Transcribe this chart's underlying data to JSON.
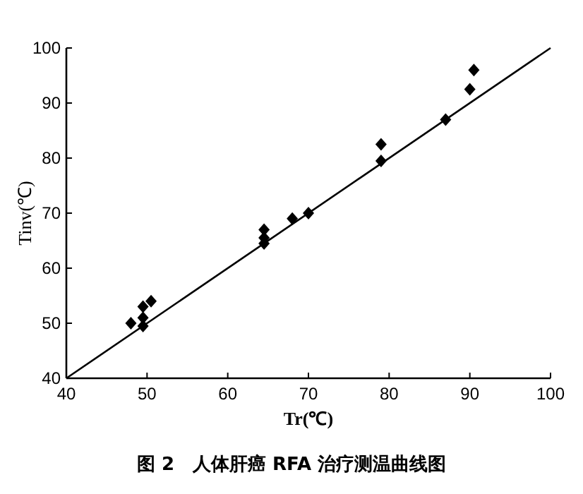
{
  "chart_data": {
    "type": "scatter",
    "xlabel": "Tr(℃)",
    "ylabel": "Tinv(℃)",
    "annotations": [
      "图 2　人体肝癌 RFA 治疗测温曲线图"
    ],
    "xlim": [
      40,
      100
    ],
    "ylim": [
      40,
      100
    ],
    "xticks": [
      40,
      50,
      60,
      70,
      80,
      90,
      100
    ],
    "yticks": [
      40,
      50,
      60,
      70,
      80,
      90,
      100
    ],
    "grid": false,
    "series": [
      {
        "marker": "diamond",
        "color": "#000000",
        "x": [
          48,
          49.5,
          49.5,
          49.5,
          50.5,
          64.5,
          64.5,
          64.5,
          68,
          70,
          79,
          79,
          87,
          90,
          90.5
        ],
        "values": [
          50,
          49.5,
          51,
          53,
          54,
          64.5,
          65.5,
          67,
          69,
          70,
          79.5,
          82.5,
          87,
          92.5,
          96
        ]
      },
      {
        "type": "line",
        "color": "#000000",
        "x": [
          40,
          100
        ],
        "values": [
          40,
          100
        ]
      }
    ]
  }
}
